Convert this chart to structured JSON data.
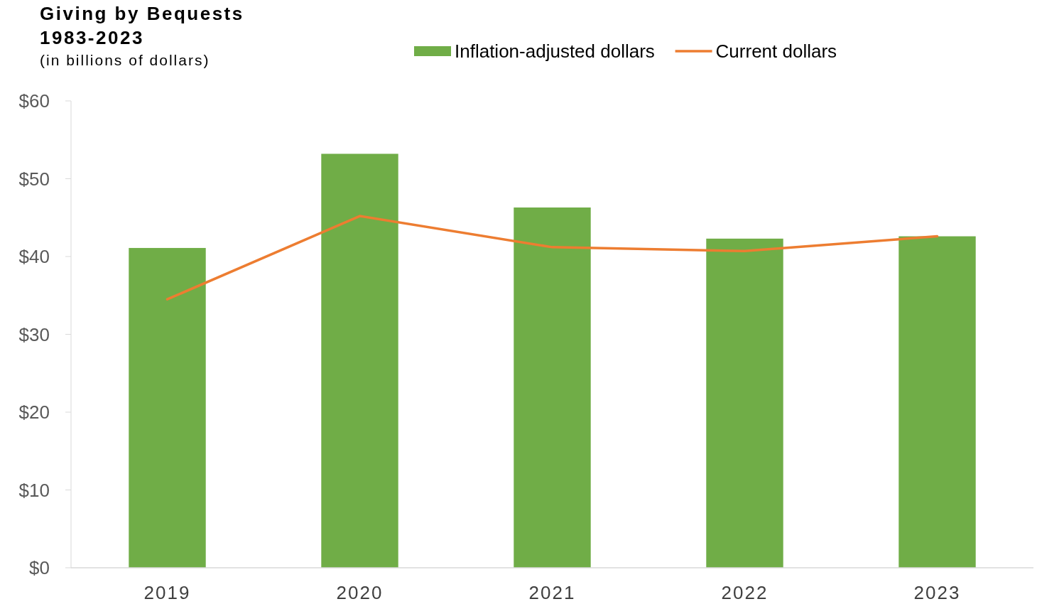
{
  "chart_data": {
    "type": "bar",
    "title": "Giving by Bequests\n1983-2023",
    "subtitle": "(in billions of dollars)",
    "categories": [
      "2019",
      "2020",
      "2021",
      "2022",
      "2023"
    ],
    "series": [
      {
        "name": "Inflation-adjusted dollars",
        "color": "#70ad47",
        "values": [
          41.1,
          53.2,
          46.3,
          42.3,
          42.6
        ]
      },
      {
        "name": "Current dollars",
        "type": "line",
        "color": "#ed7d31",
        "values": [
          34.5,
          45.2,
          41.2,
          40.7,
          42.6
        ]
      }
    ],
    "ylim": [
      0,
      60
    ],
    "yticks": [
      {
        "value": 0,
        "label": "$0"
      },
      {
        "value": 10,
        "label": "$10"
      },
      {
        "value": 20,
        "label": "$20"
      },
      {
        "value": 30,
        "label": "$30"
      },
      {
        "value": 40,
        "label": "$40"
      },
      {
        "value": 50,
        "label": "$50"
      },
      {
        "value": 60,
        "label": "$60"
      }
    ],
    "grid": false,
    "legend": "top",
    "marker": "none",
    "line_style": "solid"
  }
}
